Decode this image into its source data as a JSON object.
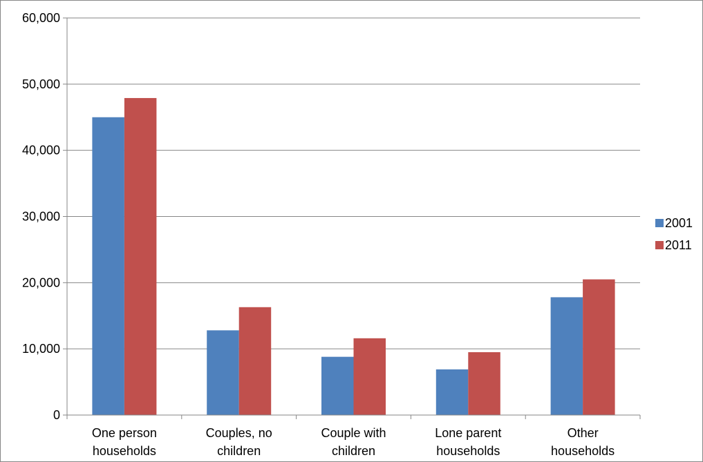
{
  "chart_data": {
    "type": "bar",
    "categories": [
      [
        "One person",
        "households"
      ],
      [
        "Couples, no",
        "children"
      ],
      [
        "Couple with",
        "children"
      ],
      [
        "Lone parent",
        "households"
      ],
      [
        "Other",
        "households"
      ]
    ],
    "series": [
      {
        "name": "2001",
        "color": "#4F81BD",
        "values": [
          45000,
          12800,
          8800,
          6900,
          17800
        ]
      },
      {
        "name": "2011",
        "color": "#C0504D",
        "values": [
          47900,
          16300,
          11600,
          9500,
          20500
        ]
      }
    ],
    "ylim": [
      0,
      60000
    ],
    "yticks": [
      0,
      10000,
      20000,
      30000,
      40000,
      50000,
      60000
    ],
    "ytick_labels": [
      "0",
      "10,000",
      "20,000",
      "30,000",
      "40,000",
      "50,000",
      "60,000"
    ],
    "grid": true,
    "legend_position": "right",
    "title": "",
    "xlabel": "",
    "ylabel": ""
  }
}
